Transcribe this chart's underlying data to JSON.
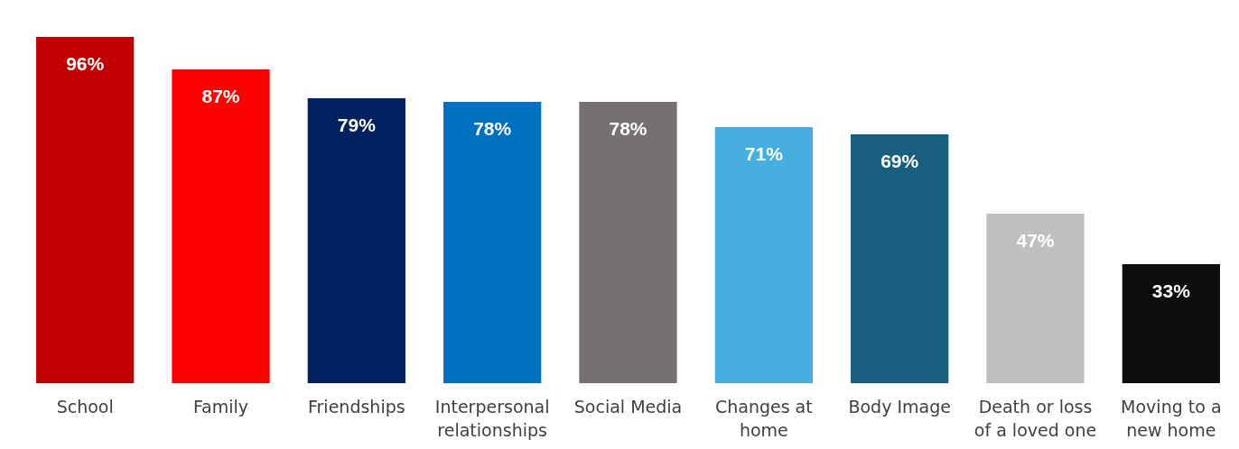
{
  "chart_data": {
    "type": "bar",
    "categories": [
      "School",
      "Family",
      "Friendships",
      "Interpersonal relationships",
      "Social Media",
      "Changes at home",
      "Body Image",
      "Death or loss of a loved one",
      "Moving to a new home"
    ],
    "values": [
      96,
      87,
      79,
      78,
      78,
      71,
      69,
      47,
      33
    ],
    "value_labels": [
      "96%",
      "87%",
      "79%",
      "78%",
      "78%",
      "71%",
      "69%",
      "47%",
      "33%"
    ],
    "colors": [
      "#c00000",
      "#ff0000",
      "#002060",
      "#0070c0",
      "#767171",
      "#47aee0",
      "#175e7f",
      "#bfbfbf",
      "#0d0d0d"
    ]
  }
}
